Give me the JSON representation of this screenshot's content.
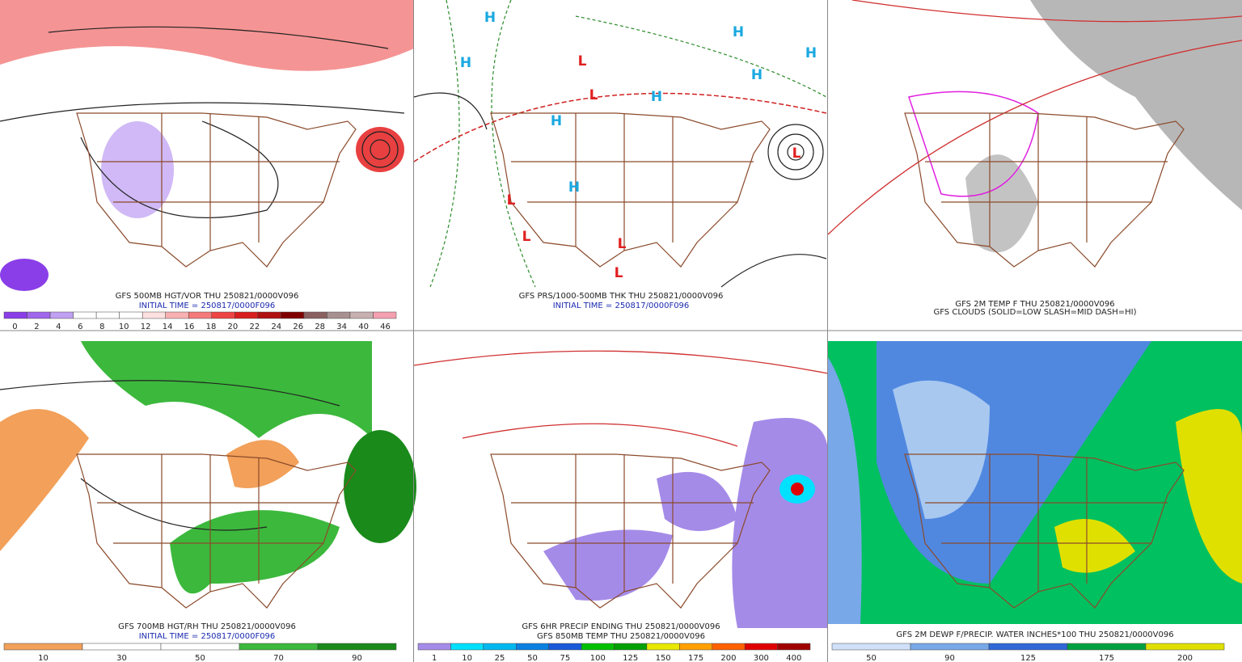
{
  "panels": [
    {
      "caption": [
        "GFS 500MB HGT/VOR THU 250821/0000V096",
        "INITIAL TIME = 250817/0000F096"
      ],
      "colorbar": {
        "labels": [
          "0",
          "2",
          "4",
          "6",
          "8",
          "10",
          "12",
          "14",
          "16",
          "18",
          "20",
          "22",
          "24",
          "26",
          "28",
          "34",
          "40",
          "46"
        ],
        "colors": [
          "#8a3ee8",
          "#a066ec",
          "#c0a0f2",
          "#ffffff",
          "#ffffff",
          "#ffffff",
          "#fde0e0",
          "#f8b0b0",
          "#f57a7a",
          "#ee4444",
          "#d81e1e",
          "#b01010",
          "#800000",
          "#8a6060",
          "#a89090",
          "#c8b0b0",
          "#f4a0b0"
        ]
      }
    },
    {
      "caption": [
        "GFS PRS/1000-500MB THK THU 250821/0000V096",
        "INITIAL TIME = 250817/0000F096"
      ]
    },
    {
      "caption": [
        "GFS 2M TEMP F THU 250821/0000V096",
        "GFS CLOUDS (SOLID=LOW SLASH=MID DASH=HI)"
      ]
    },
    {
      "caption": [
        "GFS 700MB HGT/RH THU 250821/0000V096",
        "INITIAL TIME = 250817/0000F096"
      ],
      "colorbar": {
        "labels": [
          "10",
          "30",
          "50",
          "70",
          "90"
        ],
        "colors": [
          "#f2a05a",
          "#ffffff",
          "#ffffff",
          "#3cb83c",
          "#1a8a1a"
        ]
      }
    },
    {
      "caption": [
        "GFS 6HR PRECIP ENDING THU 250821/0000V096",
        "GFS 850MB TEMP THU 250821/0000V096"
      ],
      "colorbar": {
        "labels": [
          "1",
          "10",
          "25",
          "50",
          "75",
          "100",
          "125",
          "150",
          "175",
          "200",
          "300",
          "400"
        ],
        "colors": [
          "#a58be8",
          "#00e0ff",
          "#00b8f0",
          "#0a80e0",
          "#1a5ad8",
          "#00c000",
          "#00a000",
          "#e8e800",
          "#ffa000",
          "#ff6000",
          "#e00000",
          "#a00000"
        ]
      }
    },
    {
      "caption": [
        "GFS 2M DEWP F/PRECIP. WATER INCHES*100 THU 250821/0000V096"
      ],
      "colorbar": {
        "labels": [
          "50",
          "90",
          "125",
          "175",
          "200"
        ],
        "colors": [
          "#d0e0f8",
          "#78a8e8",
          "#3068d8",
          "#00a040",
          "#e0e000"
        ]
      }
    }
  ],
  "centers": [
    "H",
    "H",
    "H",
    "H",
    "H",
    "H",
    "H",
    "H",
    "L",
    "L",
    "L",
    "L",
    "L",
    "L",
    "L"
  ]
}
